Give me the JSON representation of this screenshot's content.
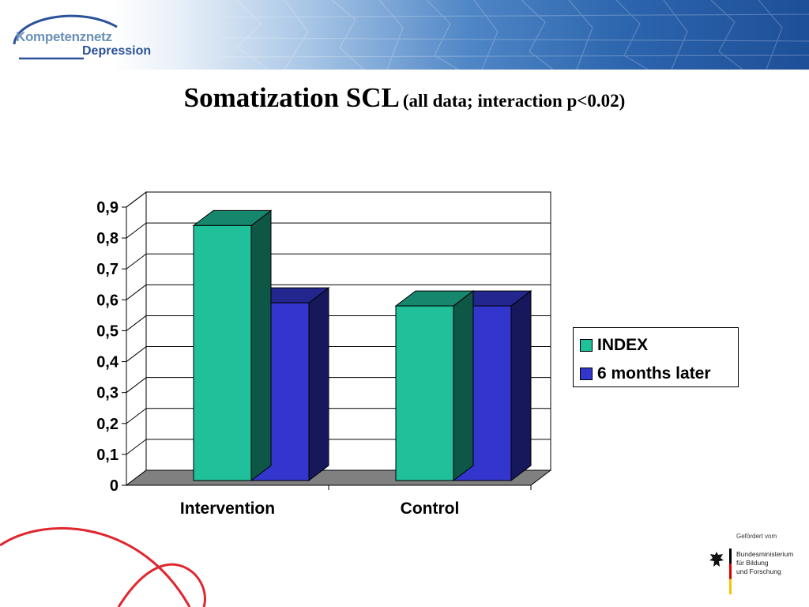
{
  "header": {
    "logo_line1": "Kompetenznetz",
    "logo_line2": "Depression"
  },
  "title": {
    "main": "Somatization SCL",
    "sub": "(all data; interaction p<0.02)"
  },
  "chart_data": {
    "type": "bar",
    "title": "Somatization SCL (all data; interaction p<0.02)",
    "categories": [
      "Intervention",
      "Control"
    ],
    "series": [
      {
        "name": "INDEX",
        "values": [
          0.83,
          0.57
        ],
        "color": "#1fc09a"
      },
      {
        "name": "6 months later",
        "values": [
          0.58,
          0.57
        ],
        "color": "#3236cc"
      }
    ],
    "ylim": [
      0,
      0.9
    ],
    "yticks": [
      "0",
      "0,1",
      "0,2",
      "0,3",
      "0,4",
      "0,5",
      "0,6",
      "0,7",
      "0,8",
      "0,9"
    ],
    "xlabel": "",
    "ylabel": "",
    "grid": true,
    "legend": "right",
    "style": "3d"
  },
  "legend": {
    "items": [
      "INDEX",
      "6 months later"
    ]
  },
  "footer": {
    "funder_label": "Gefördert vom",
    "funder_name_1": "Bundesministerium",
    "funder_name_2": "für Bildung",
    "funder_name_3": "und Forschung"
  },
  "colors": {
    "index_front": "#1fc09a",
    "later_front": "#3236cc",
    "floor": "#808080",
    "accent_red": "#e0262e"
  }
}
